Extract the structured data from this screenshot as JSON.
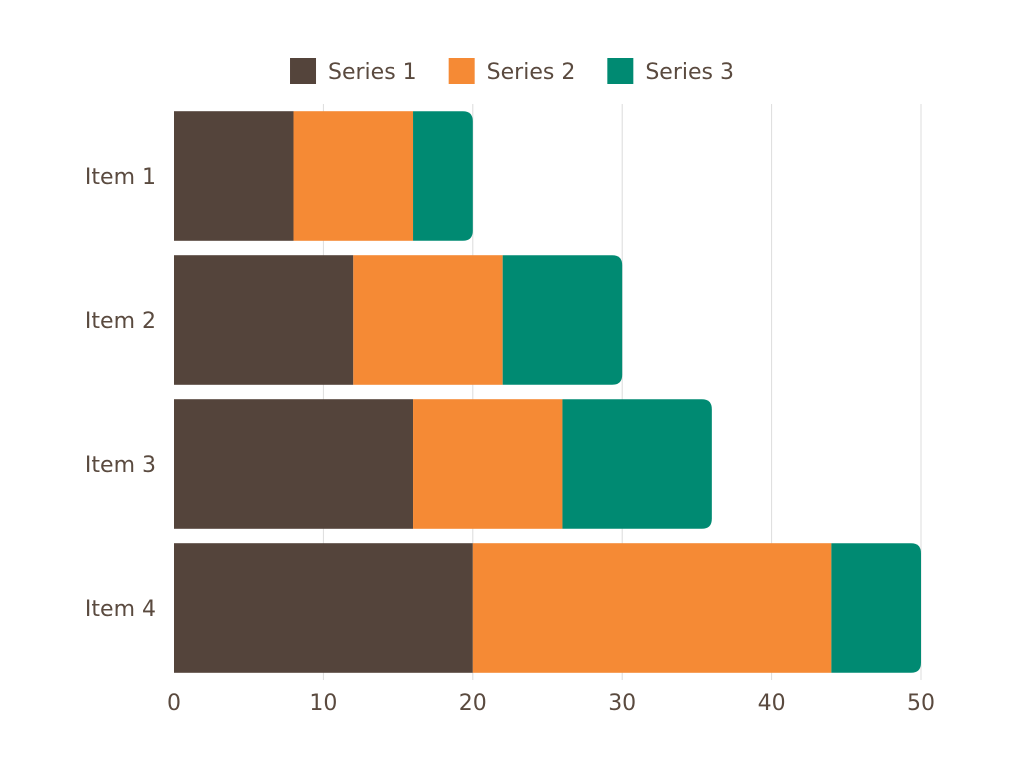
{
  "chart_data": {
    "type": "bar",
    "orientation": "horizontal",
    "stacked": true,
    "categories": [
      "Item 1",
      "Item 2",
      "Item 3",
      "Item 4"
    ],
    "series": [
      {
        "name": "Series 1",
        "color": "#54443b",
        "values": [
          8,
          12,
          16,
          20
        ]
      },
      {
        "name": "Series 2",
        "color": "#f58a35",
        "values": [
          8,
          10,
          10,
          24
        ]
      },
      {
        "name": "Series 3",
        "color": "#008a72",
        "values": [
          4,
          8,
          10,
          6
        ]
      }
    ],
    "title": "",
    "xlabel": "",
    "ylabel": "",
    "xlim": [
      0,
      50
    ],
    "xticks": [
      0,
      10,
      20,
      30,
      40,
      50
    ],
    "grid": true,
    "legend": "top-center"
  }
}
